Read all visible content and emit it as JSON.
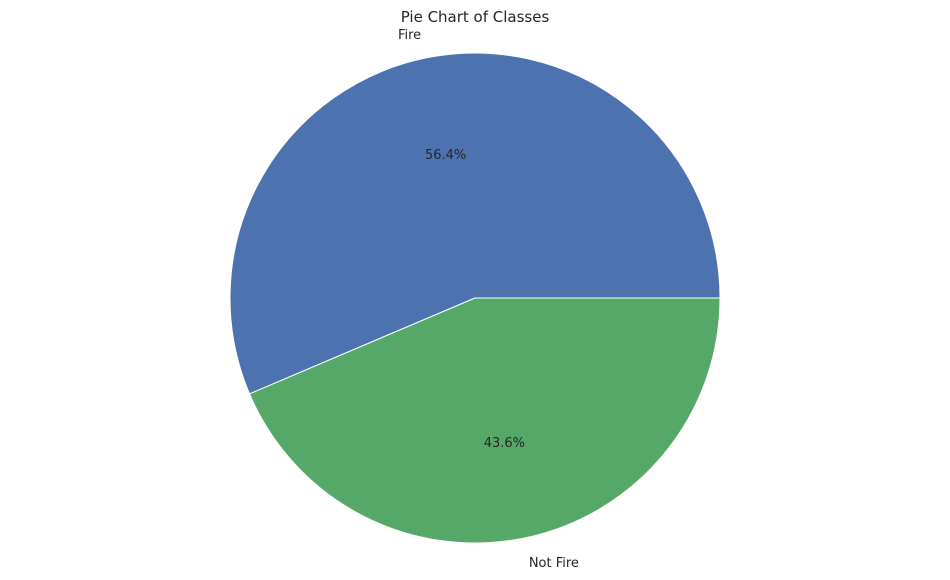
{
  "chart_data": {
    "type": "pie",
    "title": "Pie Chart of Classes",
    "labels": [
      "Fire",
      "Not Fire"
    ],
    "values": [
      56.4,
      43.6
    ],
    "percent_labels": [
      "56.4%",
      "43.6%"
    ],
    "colors": [
      "#4c72b0",
      "#55a868"
    ],
    "start_angle_deg": 0,
    "direction": "counterclockwise",
    "legend": false
  }
}
